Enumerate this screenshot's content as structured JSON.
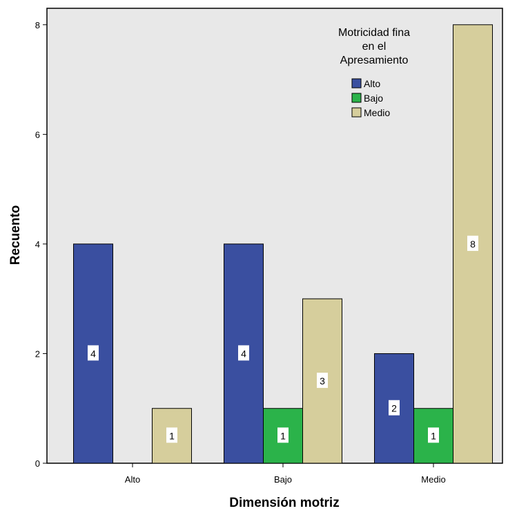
{
  "chart_data": {
    "type": "bar",
    "xlabel": "Dimensión motriz",
    "ylabel": "Recuento",
    "categories": [
      "Alto",
      "Bajo",
      "Medio"
    ],
    "ylim": [
      0,
      8.3
    ],
    "yticks": [
      0,
      2,
      4,
      6,
      8
    ],
    "legend": {
      "title_lines": [
        "Motricidad fina",
        "en el",
        "Apresamiento"
      ],
      "placement": "top-right"
    },
    "series": [
      {
        "name": "Alto",
        "color": "#3a4fa0",
        "values": [
          4,
          4,
          2
        ],
        "labels": [
          "4",
          "4",
          "2"
        ]
      },
      {
        "name": "Bajo",
        "color": "#2bb34a",
        "values": [
          0,
          1,
          1
        ],
        "labels": [
          "",
          "1",
          "1"
        ]
      },
      {
        "name": "Medio",
        "color": "#d6ce9c",
        "values": [
          1,
          3,
          8
        ],
        "labels": [
          "1",
          "3",
          "8"
        ]
      }
    ],
    "plot_background": "#e8e8e8",
    "grid": false
  }
}
